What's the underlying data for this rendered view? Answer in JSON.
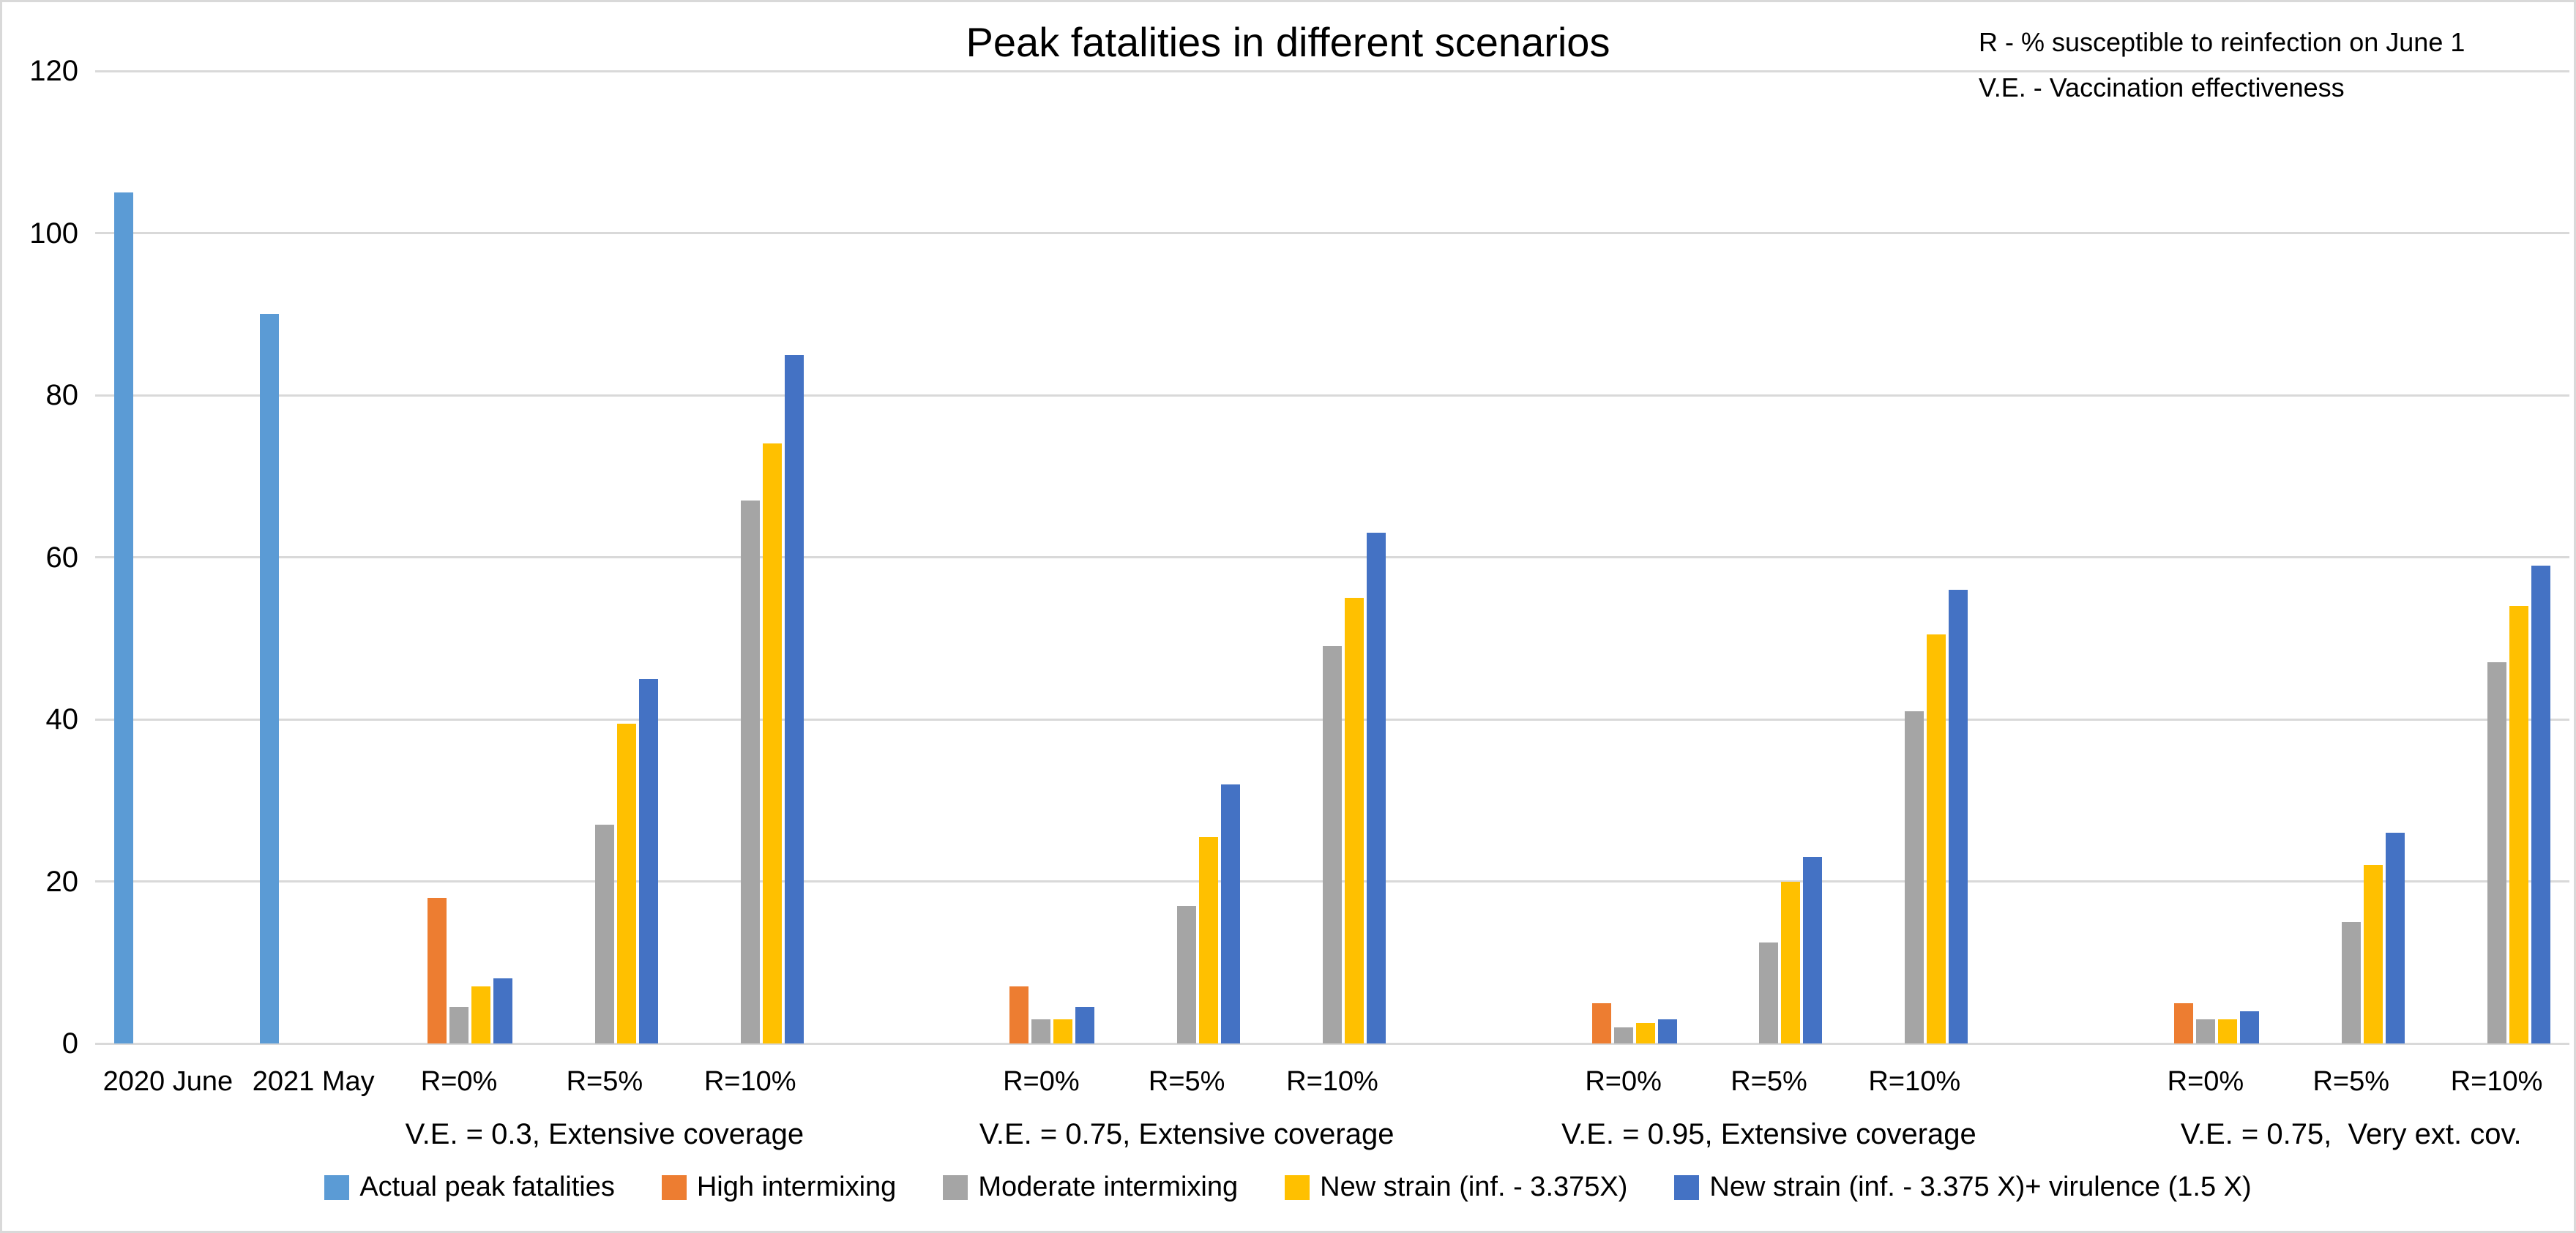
{
  "title": "Peak fatalities in different scenarios",
  "annotation": {
    "line1": "R - % susceptible to reinfection on June 1",
    "line2": "V.E. - Vaccination effectiveness"
  },
  "colors": {
    "actual_blue": "#5B9BD5",
    "orange": "#ED7D31",
    "gray": "#A5A5A5",
    "yellow": "#FFC000",
    "blue": "#4472C4",
    "gridline": "#D9D9D9",
    "background": "#FFFFFF"
  },
  "chart_data": {
    "type": "bar",
    "title": "Peak fatalities in different scenarios",
    "xlabel": "",
    "ylabel": "",
    "ylim": [
      0,
      120
    ],
    "y_ticks": [
      0,
      20,
      40,
      60,
      80,
      100,
      120
    ],
    "grid": true,
    "legend_position": "bottom",
    "axis_slots_total": 17,
    "categories": [
      {
        "label": "2020 June",
        "slot": 0,
        "group": null
      },
      {
        "label": "2021 May",
        "slot": 1,
        "group": null
      },
      {
        "label": "R=0%",
        "slot": 2,
        "group": "V.E. = 0.3, Extensive coverage"
      },
      {
        "label": "R=5%",
        "slot": 3,
        "group": "V.E. = 0.3, Extensive coverage"
      },
      {
        "label": "R=10%",
        "slot": 4,
        "group": "V.E. = 0.3, Extensive coverage"
      },
      {
        "label": "R=0%",
        "slot": 6,
        "group": "V.E. = 0.75, Extensive coverage"
      },
      {
        "label": "R=5%",
        "slot": 7,
        "group": "V.E. = 0.75, Extensive coverage"
      },
      {
        "label": "R=10%",
        "slot": 8,
        "group": "V.E. = 0.75, Extensive coverage"
      },
      {
        "label": "R=0%",
        "slot": 10,
        "group": "V.E. = 0.95, Extensive coverage"
      },
      {
        "label": "R=5%",
        "slot": 11,
        "group": "V.E. = 0.95, Extensive coverage"
      },
      {
        "label": "R=10%",
        "slot": 12,
        "group": "V.E. = 0.95, Extensive coverage"
      },
      {
        "label": "R=0%",
        "slot": 14,
        "group": "V.E. = 0.75,  Very ext. cov."
      },
      {
        "label": "R=5%",
        "slot": 15,
        "group": "V.E. = 0.75,  Very ext. cov."
      },
      {
        "label": "R=10%",
        "slot": 16,
        "group": "V.E. = 0.75,  Very ext. cov."
      }
    ],
    "groups": [
      {
        "label": "V.E. = 0.3, Extensive coverage",
        "center_slot": 3
      },
      {
        "label": "V.E. = 0.75, Extensive coverage",
        "center_slot": 7
      },
      {
        "label": "V.E. = 0.95, Extensive coverage",
        "center_slot": 11
      },
      {
        "label": "V.E. = 0.75,  Very ext. cov.",
        "center_slot": 15
      }
    ],
    "series": [
      {
        "name": "Actual peak fatalities",
        "color": "#5B9BD5",
        "values": [
          105,
          90,
          null,
          null,
          null,
          null,
          null,
          null,
          null,
          null,
          null,
          null,
          null,
          null
        ]
      },
      {
        "name": "High intermixing",
        "color": "#ED7D31",
        "values": [
          null,
          null,
          18,
          null,
          null,
          7,
          null,
          null,
          5,
          null,
          null,
          5,
          null,
          null
        ]
      },
      {
        "name": "Moderate intermixing",
        "color": "#A5A5A5",
        "values": [
          null,
          null,
          4.5,
          27,
          67,
          3,
          17,
          49,
          2,
          12.5,
          41,
          3,
          15,
          47
        ]
      },
      {
        "name": "New strain (inf. - 3.375X)",
        "color": "#FFC000",
        "values": [
          null,
          null,
          7,
          39.5,
          74,
          3,
          25.5,
          55,
          2.5,
          20,
          50.5,
          3,
          22,
          54
        ]
      },
      {
        "name": "New strain (inf. - 3.375 X)+ virulence (1.5 X)",
        "color": "#4472C4",
        "values": [
          null,
          null,
          8,
          45,
          85,
          4.5,
          32,
          63,
          3,
          23,
          56,
          4,
          26,
          59
        ]
      }
    ]
  }
}
